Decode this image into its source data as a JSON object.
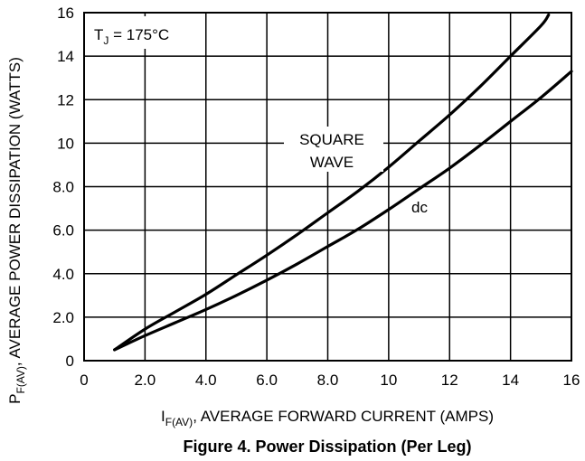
{
  "chart_data": {
    "type": "line",
    "title": "Figure 4. Power Dissipation (Per Leg)",
    "xlabel": {
      "main": "I",
      "sub": "F(AV)",
      "rest": ", AVERAGE FORWARD CURRENT (AMPS)"
    },
    "ylabel": {
      "main": "P",
      "sub": "F(AV)",
      "rest": ", AVERAGE POWER DISSIPATION (WATTS)"
    },
    "xlim": [
      0,
      16
    ],
    "ylim": [
      0,
      16
    ],
    "xticks": [
      0,
      2,
      4,
      6,
      8,
      10,
      12,
      14,
      16
    ],
    "xtick_labels": [
      "0",
      "2.0",
      "4.0",
      "6.0",
      "8.0",
      "10",
      "12",
      "14",
      "16"
    ],
    "yticks": [
      0,
      2,
      4,
      6,
      8,
      10,
      12,
      14,
      16
    ],
    "ytick_labels": [
      "0",
      "2.0",
      "4.0",
      "6.0",
      "8.0",
      "10",
      "12",
      "14",
      "16"
    ],
    "grid": true,
    "annotation": {
      "main": "T",
      "sub": "J",
      "rest": " = 175°C"
    },
    "series": [
      {
        "name": "SQUARE WAVE",
        "label_lines": [
          "SQUARE",
          "WAVE"
        ],
        "x": [
          1,
          2,
          3,
          4,
          5,
          6,
          7,
          8,
          9,
          10,
          11,
          12,
          13,
          14,
          15,
          15.25
        ],
        "y": [
          0.5,
          1.45,
          2.25,
          3.05,
          3.95,
          4.85,
          5.8,
          6.8,
          7.8,
          8.9,
          10.1,
          11.3,
          12.6,
          14.0,
          15.4,
          15.9
        ]
      },
      {
        "name": "dc",
        "label_lines": [
          "dc"
        ],
        "x": [
          1,
          2,
          3,
          4,
          5,
          6,
          7,
          8,
          9,
          10,
          11,
          12,
          13,
          14,
          15,
          16
        ],
        "y": [
          0.5,
          1.15,
          1.75,
          2.35,
          3.0,
          3.7,
          4.45,
          5.25,
          6.05,
          6.95,
          7.9,
          8.85,
          9.9,
          11.0,
          12.1,
          13.3
        ]
      }
    ]
  }
}
